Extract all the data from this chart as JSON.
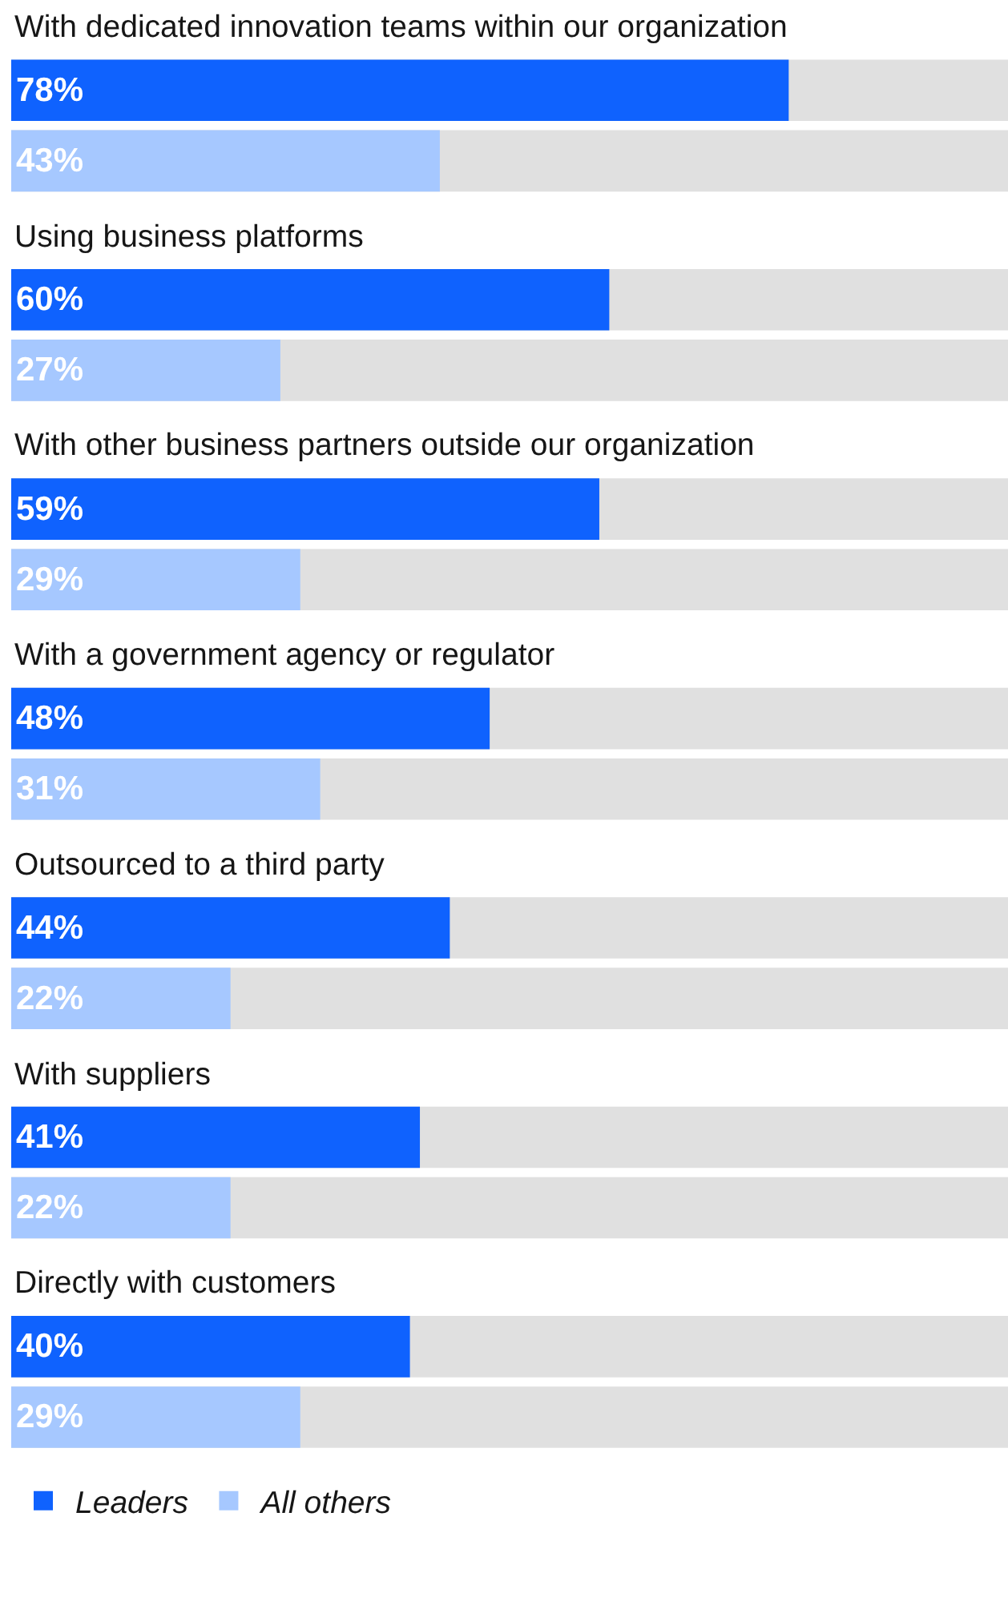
{
  "chart_data": {
    "type": "bar",
    "orientation": "horizontal",
    "categories": [
      "With dedicated innovation teams within our organization",
      "Using business platforms",
      "With other business partners outside our organization",
      "With a government agency or regulator",
      "Outsourced to a third party",
      "With suppliers",
      "Directly with customers"
    ],
    "xlim": [
      0,
      100
    ],
    "tick_labels": false,
    "grid": false,
    "legend": "bottom left",
    "series": [
      {
        "name": "Leaders",
        "color": "#0f62fe",
        "values": [
          78,
          60,
          59,
          48,
          44,
          41,
          40
        ],
        "value_labels": [
          "78%",
          "60%",
          "59%",
          "48%",
          "44%",
          "41%",
          "40%"
        ]
      },
      {
        "name": "All others",
        "color": "#a6c8ff",
        "values": [
          43,
          27,
          29,
          31,
          22,
          22,
          29
        ],
        "value_labels": [
          "43%",
          "27%",
          "29%",
          "31%",
          "22%",
          "22%",
          "29%"
        ]
      }
    ]
  }
}
